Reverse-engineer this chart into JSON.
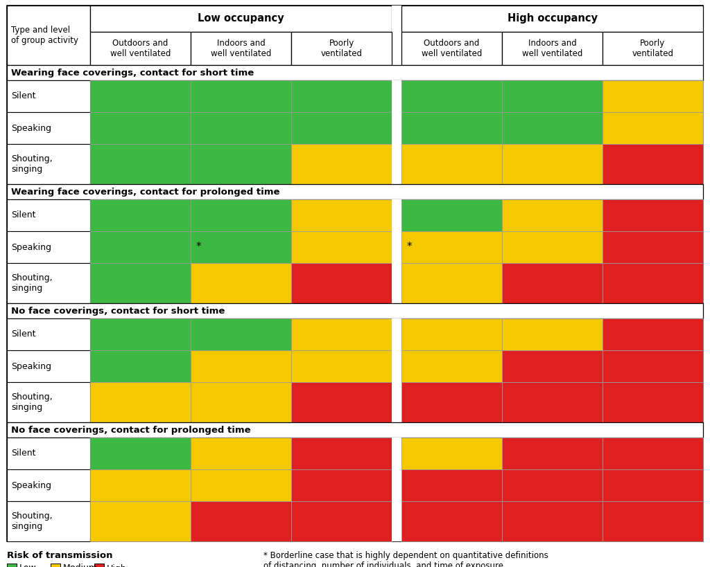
{
  "colors": {
    "G": "#3cb843",
    "Y": "#f5c800",
    "R": "#e02020",
    "W": "#ffffff"
  },
  "sections": [
    {
      "title": "Wearing face coverings, contact for short time",
      "rows": [
        {
          "label": "Silent",
          "cells": [
            "G",
            "G",
            "G",
            "G",
            "G",
            "Y"
          ],
          "asterisks": []
        },
        {
          "label": "Speaking",
          "cells": [
            "G",
            "G",
            "G",
            "G",
            "G",
            "Y"
          ],
          "asterisks": []
        },
        {
          "label": "Shouting,\nsinging",
          "cells": [
            "G",
            "G",
            "Y",
            "Y",
            "Y",
            "R"
          ],
          "asterisks": [],
          "tall": true
        }
      ]
    },
    {
      "title": "Wearing face coverings, contact for prolonged time",
      "rows": [
        {
          "label": "Silent",
          "cells": [
            "G",
            "G",
            "Y",
            "G",
            "Y",
            "R"
          ],
          "asterisks": []
        },
        {
          "label": "Speaking",
          "cells": [
            "G",
            "G",
            "Y",
            "Y",
            "Y",
            "R"
          ],
          "asterisks": [
            1,
            3
          ]
        },
        {
          "label": "Shouting,\nsinging",
          "cells": [
            "G",
            "Y",
            "R",
            "Y",
            "R",
            "R"
          ],
          "asterisks": [],
          "tall": true
        }
      ]
    },
    {
      "title": "No face coverings, contact for short time",
      "rows": [
        {
          "label": "Silent",
          "cells": [
            "G",
            "G",
            "Y",
            "Y",
            "Y",
            "R"
          ],
          "asterisks": []
        },
        {
          "label": "Speaking",
          "cells": [
            "G",
            "Y",
            "Y",
            "Y",
            "R",
            "R"
          ],
          "asterisks": []
        },
        {
          "label": "Shouting,\nsinging",
          "cells": [
            "Y",
            "Y",
            "R",
            "R",
            "R",
            "R"
          ],
          "asterisks": [],
          "tall": true
        }
      ]
    },
    {
      "title": "No face coverings, contact for prolonged time",
      "rows": [
        {
          "label": "Silent",
          "cells": [
            "G",
            "Y",
            "R",
            "Y",
            "R",
            "R"
          ],
          "asterisks": []
        },
        {
          "label": "Speaking",
          "cells": [
            "Y",
            "Y",
            "R",
            "R",
            "R",
            "R"
          ],
          "asterisks": []
        },
        {
          "label": "Shouting,\nsinging",
          "cells": [
            "Y",
            "R",
            "R",
            "R",
            "R",
            "R"
          ],
          "asterisks": [],
          "tall": true
        }
      ]
    }
  ],
  "col_headers_top": [
    {
      "text": "Low occupancy",
      "span": [
        0,
        3
      ]
    },
    {
      "text": "High occupancy",
      "span": [
        3,
        6
      ]
    }
  ],
  "col_headers_sub": [
    "Outdoors and\nwell ventilated",
    "Indoors and\nwell ventilated",
    "Poorly\nventilated",
    "Outdoors and\nwell ventilated",
    "Indoors and\nwell ventilated",
    "Poorly\nventilated"
  ],
  "row_header": "Type and level\nof group activity",
  "legend_title": "Risk of transmission",
  "legend_items": [
    {
      "label": "Low",
      "color": "#3cb843"
    },
    {
      "label": "Medium",
      "color": "#f5c800"
    },
    {
      "label": "High",
      "color": "#e02020"
    }
  ],
  "legend_note": "* Borderline case that is highly dependent on quantitative definitions\nof distancing, number of individuals, and time of exposure"
}
